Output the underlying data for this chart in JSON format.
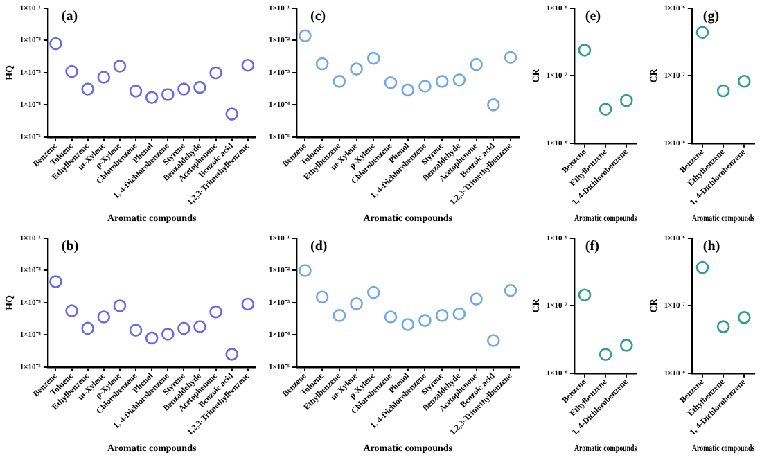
{
  "chart_data": [
    {
      "type": "scatter",
      "title": "(a)",
      "xlabel": "Aromatic compounds",
      "ylabel": "HQ",
      "log": "y",
      "marker": "circle",
      "color": "#6a6ae0",
      "categories": [
        "Benzene",
        "Toluene",
        "Ethylbenzene",
        "m-Xylene",
        "p-Xylene",
        "Chlorobenzene",
        "Phenol",
        "1, 4-Dichlorobenzene",
        "Styrene",
        "Benzaldehyde",
        "Acetophenone",
        "Benzoic acid",
        "1,2,3-Trimethylbenzene"
      ],
      "values": [
        0.008,
        0.0011,
        0.00031,
        0.00072,
        0.0016,
        0.00027,
        0.00017,
        0.00021,
        0.00031,
        0.00035,
        0.001,
        5.2e-05,
        0.0017
      ],
      "ylim": [
        1e-05,
        0.1
      ],
      "yticks": [
        {
          "value": 1e-05,
          "label": "1×10⁻⁵"
        },
        {
          "value": 0.0001,
          "label": "1×10⁻⁴"
        },
        {
          "value": 0.001,
          "label": "1×10⁻³"
        },
        {
          "value": 0.01,
          "label": "1×10⁻²"
        },
        {
          "value": 0.1,
          "label": "1×10⁻¹"
        }
      ]
    },
    {
      "type": "scatter",
      "title": "(c)",
      "xlabel": "Aromatic compounds",
      "log": "y",
      "marker": "circle",
      "color": "#6fa8e8",
      "categories": [
        "Benzene",
        "Toluene",
        "Ethylbenzene",
        "m-Xylene",
        "p-Xylene",
        "Chlorobenzene",
        "Phenol",
        "1, 4-Dichlorobenzene",
        "Styrene",
        "Benzaldehyde",
        "Acetophenone",
        "Benzoic acid",
        "1,2,3-Trimethylbenzene"
      ],
      "values": [
        0.014,
        0.0019,
        0.00054,
        0.0013,
        0.0028,
        0.00049,
        0.00029,
        0.00038,
        0.00054,
        0.0006,
        0.0018,
        0.0001,
        0.003
      ],
      "ylim": [
        1e-05,
        0.1
      ],
      "yticks": [
        {
          "value": 1e-05,
          "label": "1×10⁻⁵"
        },
        {
          "value": 0.0001,
          "label": "1×10⁻⁴"
        },
        {
          "value": 0.001,
          "label": "1×10⁻³"
        },
        {
          "value": 0.01,
          "label": "1×10⁻²"
        },
        {
          "value": 0.1,
          "label": "1×10⁻¹"
        }
      ]
    },
    {
      "type": "scatter",
      "title": "(e)",
      "xlabel": "Aromatic compounds",
      "ylabel": "CR",
      "log": "y",
      "marker": "circle",
      "color": "#2e9e88",
      "categories": [
        "Benzene",
        "Ethylbenzene",
        "1, 4-Dichlorobenzene"
      ],
      "values": [
        2.4e-07,
        3.2e-08,
        4.3e-08
      ],
      "ylim": [
        1e-08,
        1e-06
      ],
      "yticks": [
        {
          "value": 1e-08,
          "label": "1×10⁻⁸"
        },
        {
          "value": 1e-07,
          "label": "1×10⁻⁷"
        },
        {
          "value": 1e-06,
          "label": "1×10⁻⁶"
        }
      ]
    },
    {
      "type": "scatter",
      "title": "(g)",
      "xlabel": "Aromatic compounds",
      "ylabel": "CR",
      "log": "y",
      "marker": "circle",
      "color": "#2e9e88",
      "categories": [
        "Benzene",
        "Ethylbenzene",
        "1, 4-Dichlorobenzene"
      ],
      "values": [
        4.4e-07,
        6e-08,
        8.3e-08
      ],
      "ylim": [
        1e-08,
        1e-06
      ],
      "yticks": [
        {
          "value": 1e-08,
          "label": "1×10⁻⁸"
        },
        {
          "value": 1e-07,
          "label": "1×10⁻⁷"
        },
        {
          "value": 1e-06,
          "label": "1×10⁻⁶"
        }
      ]
    },
    {
      "type": "scatter",
      "title": "(b)",
      "xlabel": "Aromatic compounds",
      "ylabel": "HQ",
      "log": "y",
      "marker": "circle",
      "color": "#6a6ae0",
      "categories": [
        "Benzene",
        "Toluene",
        "Ethylbenzene",
        "m-Xylene",
        "p-Xylene",
        "Chlorobenzene",
        "Phenol",
        "1, 4-Dichlorobenzene",
        "Styrene",
        "Benzaldehyde",
        "Acetophenone",
        "Benzoic acid",
        "1,2,3-Trimethylbenzene"
      ],
      "values": [
        0.0045,
        0.00056,
        0.00016,
        0.00036,
        0.0008,
        0.00014,
        8e-05,
        0.000105,
        0.00016,
        0.00018,
        0.00052,
        2.5e-05,
        0.0009
      ],
      "ylim": [
        1e-05,
        0.1
      ],
      "yticks": [
        {
          "value": 1e-05,
          "label": "1×10⁻⁵"
        },
        {
          "value": 0.0001,
          "label": "1×10⁻⁴"
        },
        {
          "value": 0.001,
          "label": "1×10⁻³"
        },
        {
          "value": 0.01,
          "label": "1×10⁻²"
        },
        {
          "value": 0.1,
          "label": "1×10⁻¹"
        }
      ]
    },
    {
      "type": "scatter",
      "title": "(d)",
      "xlabel": "Aromatic compounds",
      "log": "y",
      "marker": "circle",
      "color": "#6fa8e8",
      "categories": [
        "Benzene",
        "Toluene",
        "Ethylbenzene",
        "m-Xylene",
        "p-Xylene",
        "Chlorobenzene",
        "Phenol",
        "1, 4-Dichlorobenzene",
        "Styrene",
        "Benzaldehyde",
        "Acetophenone",
        "Benzoic acid",
        "1,2,3-Trimethylbenzene"
      ],
      "values": [
        0.01,
        0.0015,
        0.0004,
        0.00093,
        0.0021,
        0.00036,
        0.00021,
        0.00028,
        0.0004,
        0.00045,
        0.0013,
        6.7e-05,
        0.0024
      ],
      "ylim": [
        1e-05,
        0.1
      ],
      "yticks": [
        {
          "value": 1e-05,
          "label": "1×10⁻⁵"
        },
        {
          "value": 0.0001,
          "label": "1×10⁻⁴"
        },
        {
          "value": 0.001,
          "label": "1×10⁻³"
        },
        {
          "value": 0.01,
          "label": "1×10⁻²"
        },
        {
          "value": 0.1,
          "label": "1×10⁻¹"
        }
      ]
    },
    {
      "type": "scatter",
      "title": "(f)",
      "xlabel": "Aromatic compounds",
      "ylabel": "CR",
      "log": "y",
      "marker": "circle",
      "color": "#2e9e88",
      "categories": [
        "Benzene",
        "Ethylbenzene",
        "1, 4-Dichlorobenzene"
      ],
      "values": [
        1.45e-07,
        1.9e-08,
        2.6e-08
      ],
      "ylim": [
        1e-08,
        1e-06
      ],
      "yticks": [
        {
          "value": 1e-08,
          "label": "1×10⁻⁸"
        },
        {
          "value": 1e-07,
          "label": "1×10⁻⁷"
        },
        {
          "value": 1e-06,
          "label": "1×10⁻⁶"
        }
      ]
    },
    {
      "type": "scatter",
      "title": "(h)",
      "xlabel": "Aromatic compounds",
      "ylabel": "CR",
      "log": "y",
      "marker": "circle",
      "color": "#2e9e88",
      "categories": [
        "Benzene",
        "Ethylbenzene",
        "1, 4-Dichlorobenzene"
      ],
      "values": [
        3.7e-07,
        4.9e-08,
        6.7e-08
      ],
      "ylim": [
        1e-08,
        1e-06
      ],
      "yticks": [
        {
          "value": 1e-08,
          "label": "1×10⁻⁸"
        },
        {
          "value": 1e-07,
          "label": "1×10⁻⁷"
        },
        {
          "value": 1e-06,
          "label": "1×10⁻⁶"
        }
      ]
    }
  ]
}
